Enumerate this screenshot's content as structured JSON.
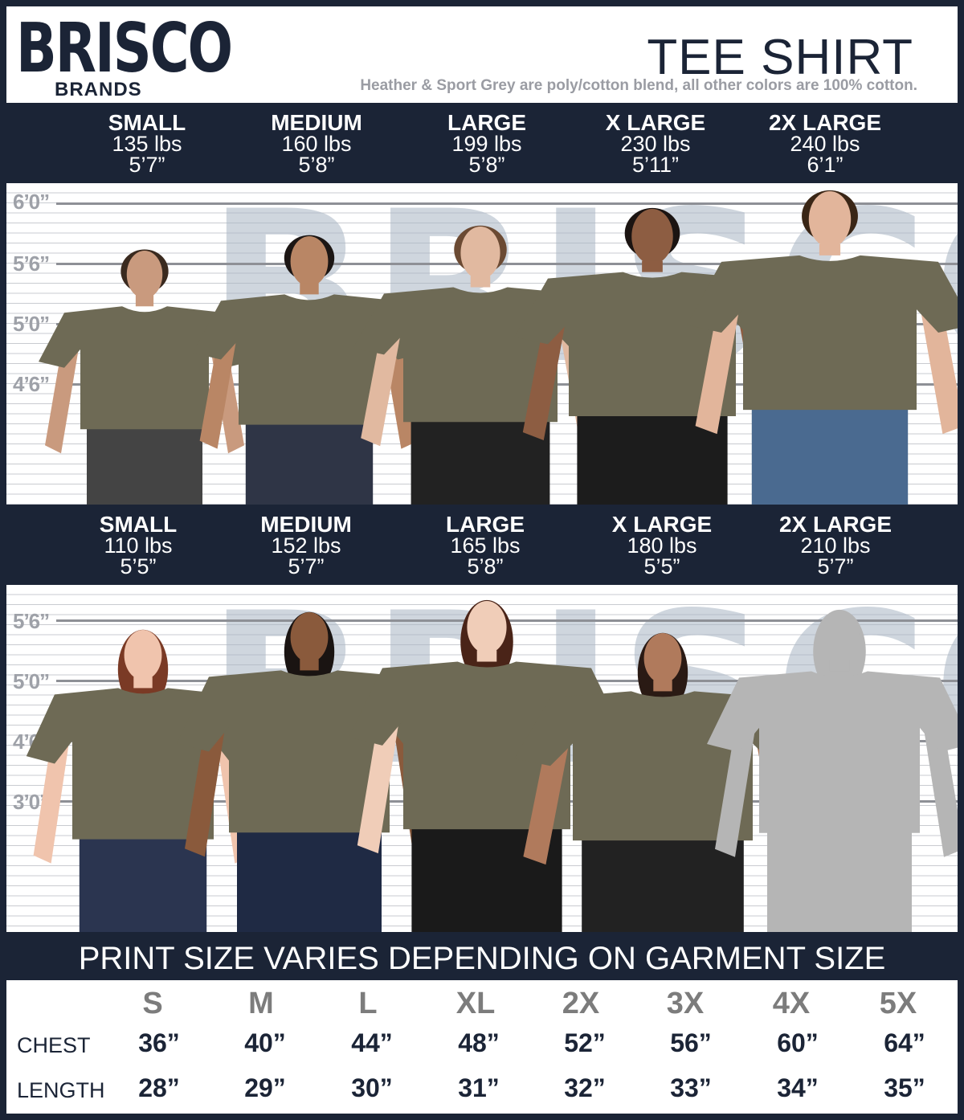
{
  "header": {
    "logo_top": "BRISCO",
    "logo_bottom": "BRANDS",
    "title": "TEE SHIRT",
    "subtitle": "Heather & Sport Grey are poly/cotton blend, all other colors are 100% cotton."
  },
  "men": {
    "sizes": [
      {
        "size": "SMALL",
        "weight": "135 lbs",
        "height": "5’7”"
      },
      {
        "size": "MEDIUM",
        "weight": "160 lbs",
        "height": "5’8”"
      },
      {
        "size": "LARGE",
        "weight": "199 lbs",
        "height": "5’8”"
      },
      {
        "size": "X LARGE",
        "weight": "230 lbs",
        "height": "5’11”"
      },
      {
        "size": "2X LARGE",
        "weight": "240 lbs",
        "height": "6’1”"
      }
    ],
    "height_marks": [
      "6’0”",
      "5’6”",
      "5’0”",
      "4’6”"
    ]
  },
  "women": {
    "sizes": [
      {
        "size": "SMALL",
        "weight": "110 lbs",
        "height": "5’5”"
      },
      {
        "size": "MEDIUM",
        "weight": "152 lbs",
        "height": "5’7”"
      },
      {
        "size": "LARGE",
        "weight": "165 lbs",
        "height": "5’8”"
      },
      {
        "size": "X LARGE",
        "weight": "180 lbs",
        "height": "5’5”"
      },
      {
        "size": "2X LARGE",
        "weight": "210 lbs",
        "height": "5’7”"
      }
    ],
    "height_marks": [
      "5’6”",
      "5’0”",
      "4’6”",
      "3’0”"
    ]
  },
  "banner": "PRINT SIZE VARIES DEPENDING ON GARMENT SIZE",
  "size_table": {
    "headers": [
      "S",
      "M",
      "L",
      "XL",
      "2X",
      "3X",
      "4X",
      "5X"
    ],
    "rows": [
      {
        "label": "CHEST",
        "values": [
          "36”",
          "40”",
          "44”",
          "48”",
          "52”",
          "56”",
          "60”",
          "64”"
        ]
      },
      {
        "label": "LENGTH",
        "values": [
          "28”",
          "29”",
          "30”",
          "31”",
          "32”",
          "33”",
          "34”",
          "35”"
        ]
      }
    ]
  },
  "colors": {
    "navy": "#1b2436",
    "shirt": "#6e6a55",
    "silhouette": "#b5b5b5"
  }
}
